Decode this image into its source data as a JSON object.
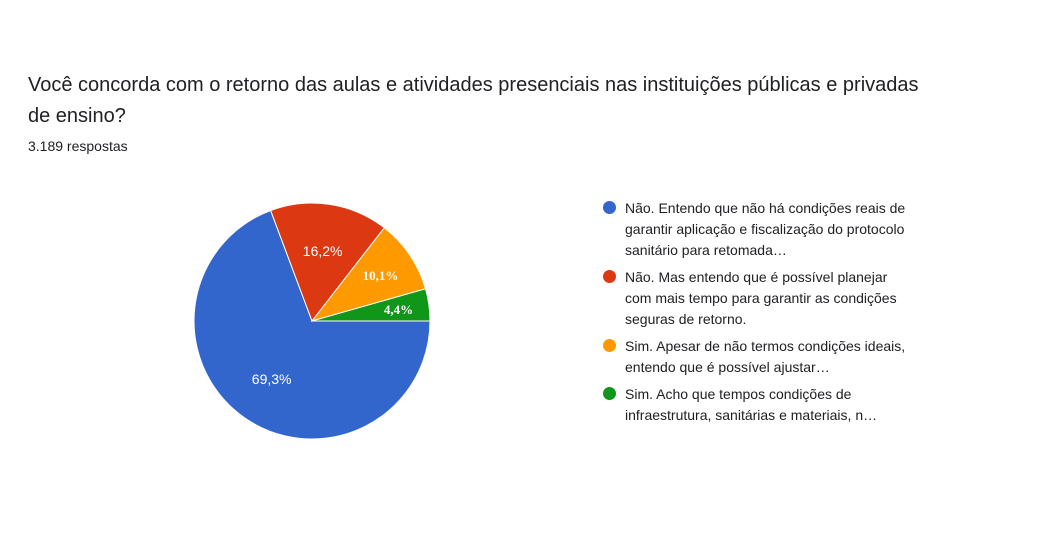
{
  "question": {
    "title": "Você concorda com o retorno das aulas e atividades presenciais nas instituições públicas e privadas de ensino?",
    "response_count": "3.189 respostas"
  },
  "chart_data": {
    "type": "pie",
    "slices": [
      {
        "label": "Não. Entendo que não há condições reais de garantir aplicação e fiscalização do protocolo sanitário para retomada…",
        "value": 69.3,
        "value_label": "69,3%",
        "color": "#3366cc"
      },
      {
        "label": "Não. Mas entendo que é possível planejar com mais tempo para garantir as condições seguras de retorno.",
        "value": 16.2,
        "value_label": "16,2%",
        "color": "#dc3912"
      },
      {
        "label": "Sim. Apesar de não termos condições ideais, entendo que é possível ajustar…",
        "value": 10.1,
        "value_label": "10,1%",
        "color": "#ff9900"
      },
      {
        "label": "Sim. Acho que tempos condições de infraestrutura, sanitárias e materiais, n…",
        "value": 4.4,
        "value_label": "4,4%",
        "color": "#109618"
      }
    ],
    "legend_position": "right"
  }
}
